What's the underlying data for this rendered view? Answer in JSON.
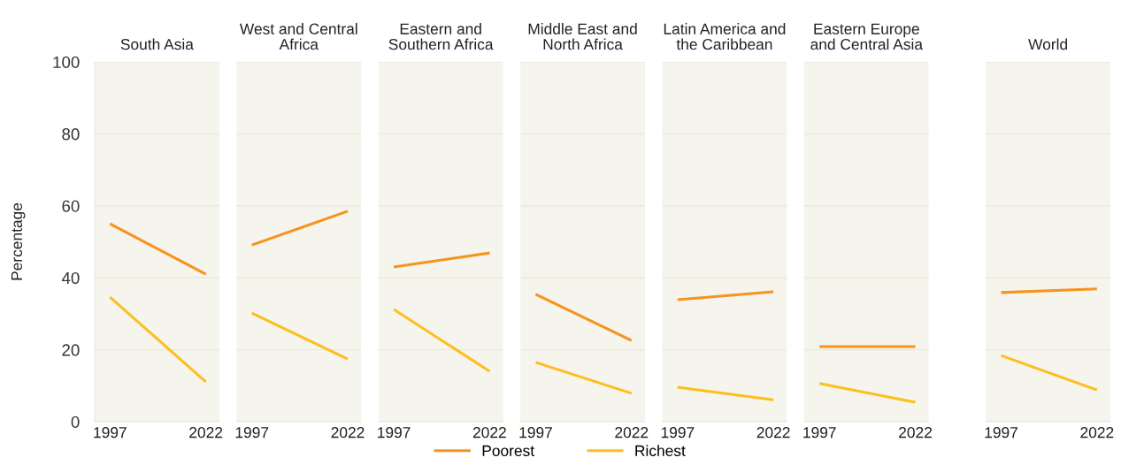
{
  "chart_data": [
    {
      "type": "line",
      "title": "South Asia",
      "ylabel": "Percentage",
      "categories": [
        "1997",
        "2022"
      ],
      "ylim": [
        0,
        100
      ],
      "yticks": [
        0,
        20,
        40,
        60,
        80,
        100
      ],
      "grid": "y",
      "legend": "bottom",
      "line_style": "solid",
      "series": [
        {
          "name": "Poorest",
          "color": "#f7931e",
          "values": [
            55.0,
            41.0
          ]
        },
        {
          "name": "Richest",
          "color": "#fdbf1e",
          "values": [
            34.6,
            11.1
          ]
        }
      ]
    },
    {
      "type": "line",
      "title": "West and Central\nAfrica",
      "categories": [
        "1997",
        "2022"
      ],
      "ylim": [
        0,
        100
      ],
      "tick_labels": "x",
      "grid": "y",
      "line_style": "solid",
      "series": [
        {
          "color": "#f7931e",
          "values": [
            49.1,
            58.5
          ]
        },
        {
          "color": "#fdbf1e",
          "values": [
            30.2,
            17.4
          ]
        }
      ]
    },
    {
      "type": "line",
      "title": "Eastern and\nSouthern Africa",
      "categories": [
        "1997",
        "2022"
      ],
      "ylim": [
        0,
        100
      ],
      "tick_labels": "x",
      "grid": "y",
      "line_style": "solid",
      "series": [
        {
          "color": "#f7931e",
          "values": [
            43.0,
            46.9
          ]
        },
        {
          "color": "#fdbf1e",
          "values": [
            31.2,
            14.0
          ]
        }
      ]
    },
    {
      "type": "line",
      "title": "Middle East and\nNorth Africa",
      "categories": [
        "1997",
        "2022"
      ],
      "ylim": [
        0,
        100
      ],
      "tick_labels": "x",
      "grid": "y",
      "line_style": "solid",
      "series": [
        {
          "color": "#f7931e",
          "values": [
            35.4,
            22.6
          ]
        },
        {
          "color": "#fdbf1e",
          "values": [
            16.5,
            7.9
          ]
        }
      ]
    },
    {
      "type": "line",
      "title": "Latin America and\nthe Caribbean",
      "categories": [
        "1997",
        "2022"
      ],
      "ylim": [
        0,
        100
      ],
      "tick_labels": "x",
      "grid": "y",
      "line_style": "solid",
      "series": [
        {
          "color": "#f7931e",
          "values": [
            33.9,
            36.1
          ]
        },
        {
          "color": "#fdbf1e",
          "values": [
            9.6,
            6.1
          ]
        }
      ]
    },
    {
      "type": "line",
      "title": "Eastern Europe\nand Central Asia",
      "categories": [
        "1997",
        "2022"
      ],
      "ylim": [
        0,
        100
      ],
      "tick_labels": "x",
      "grid": "y",
      "line_style": "solid",
      "series": [
        {
          "color": "#f7931e",
          "values": [
            20.9,
            20.9
          ]
        },
        {
          "color": "#fdbf1e",
          "values": [
            10.6,
            5.4
          ]
        }
      ]
    },
    {
      "type": "line",
      "title": "World",
      "categories": [
        "1997",
        "2022"
      ],
      "ylim": [
        0,
        100
      ],
      "tick_labels": "x",
      "grid": "y",
      "line_style": "solid",
      "series": [
        {
          "color": "#f7931e",
          "values": [
            35.9,
            36.9
          ]
        },
        {
          "color": "#fdbf1e",
          "values": [
            18.4,
            8.8
          ]
        }
      ]
    }
  ]
}
